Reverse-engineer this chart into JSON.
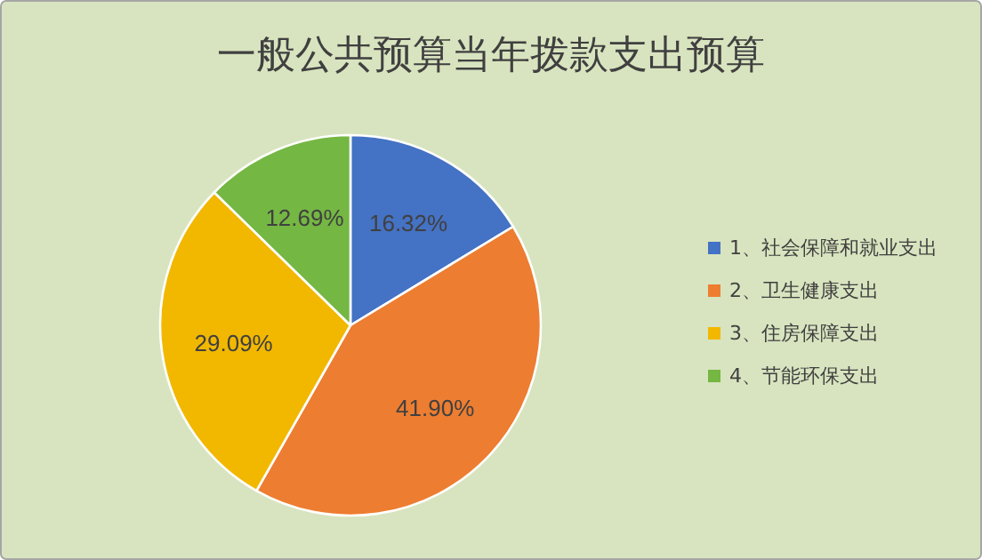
{
  "chart_data": {
    "type": "pie",
    "title": "一般公共预算当年拨款支出预算",
    "categories": [
      "1、社会保障和就业支出",
      "2、卫生健康支出",
      "3、住房保障支出",
      "4、节能环保支出"
    ],
    "values": [
      16.32,
      41.9,
      29.09,
      12.69
    ],
    "colors": [
      "#4472c4",
      "#ed7d31",
      "#f2b800",
      "#74b743"
    ],
    "value_labels": [
      "16.32%",
      "41.90%",
      "29.09%",
      "12.69%"
    ],
    "legend": "right"
  }
}
